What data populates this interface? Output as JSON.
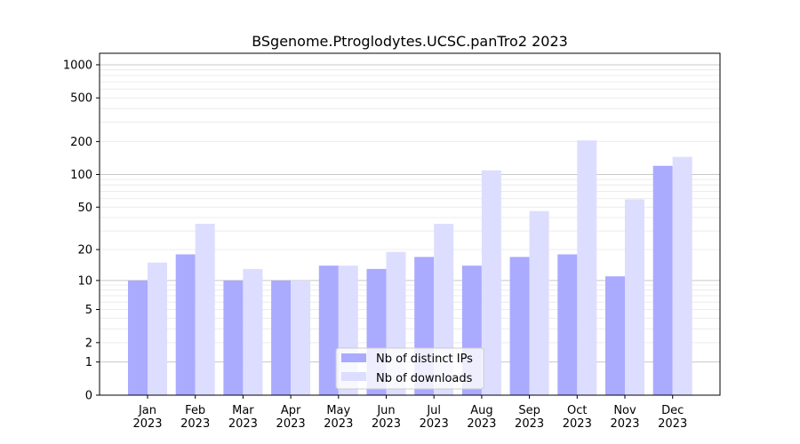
{
  "chart_data": {
    "type": "bar",
    "title": "BSgenome.Ptroglodytes.UCSC.panTro2 2023",
    "xlabel": "",
    "ylabel": "",
    "yscale": "log(1+y)",
    "ylim": [
      0,
      1200
    ],
    "yticks": [
      0,
      1,
      2,
      5,
      10,
      20,
      50,
      100,
      200,
      500,
      1000
    ],
    "categories": [
      "Jan\n2023",
      "Feb\n2023",
      "Mar\n2023",
      "Apr\n2023",
      "May\n2023",
      "Jun\n2023",
      "Jul\n2023",
      "Aug\n2023",
      "Sep\n2023",
      "Oct\n2023",
      "Nov\n2023",
      "Dec\n2023"
    ],
    "series": [
      {
        "name": "Nb of distinct IPs",
        "color": "#aaaaff",
        "values": [
          10,
          18,
          10,
          10,
          14,
          13,
          17,
          14,
          17,
          18,
          11,
          120
        ]
      },
      {
        "name": "Nb of downloads",
        "color": "#ddddff",
        "values": [
          15,
          35,
          13,
          10,
          14,
          19,
          35,
          109,
          46,
          205,
          59,
          145
        ]
      }
    ],
    "legend": "bottom-center",
    "grid": true
  }
}
